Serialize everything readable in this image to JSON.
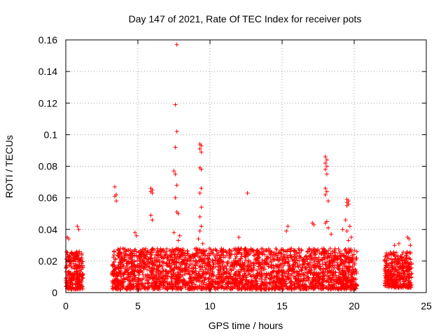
{
  "chart_data": {
    "type": "scatter",
    "title": "Day 147 of 2021, Rate Of TEC Index for receiver pots",
    "xlabel": "GPS time / hours",
    "ylabel": "ROTI / TECUs",
    "xlim": [
      0,
      25
    ],
    "ylim": [
      0,
      0.16
    ],
    "xticks": [
      0,
      5,
      10,
      15,
      20,
      25
    ],
    "yticks": [
      0,
      0.02,
      0.04,
      0.06,
      0.08,
      0.1,
      0.12,
      0.14,
      0.16
    ],
    "xtick_labels": [
      "0",
      "5",
      "10",
      "15",
      "20",
      "25"
    ],
    "ytick_labels": [
      "0",
      "0.02",
      "0.04",
      "0.06",
      "0.08",
      "0.1",
      "0.12",
      "0.14",
      "0.16"
    ],
    "grid": true,
    "marker": "+",
    "color": "#ff0000",
    "dense_segments": [
      {
        "x_range": [
          0.0,
          1.2
        ],
        "y_range": [
          0.002,
          0.026
        ],
        "density_per_hour": 220
      },
      {
        "x_range": [
          3.2,
          20.2
        ],
        "y_range": [
          0.002,
          0.028
        ],
        "density_per_hour": 170
      },
      {
        "x_range": [
          22.1,
          24.0
        ],
        "y_range": [
          0.003,
          0.026
        ],
        "density_per_hour": 200
      }
    ],
    "points": [
      {
        "x": 7.7,
        "y": 0.157
      },
      {
        "x": 7.6,
        "y": 0.119
      },
      {
        "x": 7.7,
        "y": 0.102
      },
      {
        "x": 7.6,
        "y": 0.092
      },
      {
        "x": 7.5,
        "y": 0.077
      },
      {
        "x": 7.6,
        "y": 0.075
      },
      {
        "x": 7.7,
        "y": 0.068
      },
      {
        "x": 7.6,
        "y": 0.06
      },
      {
        "x": 7.7,
        "y": 0.051
      },
      {
        "x": 7.8,
        "y": 0.05
      },
      {
        "x": 7.5,
        "y": 0.038
      },
      {
        "x": 7.9,
        "y": 0.036
      },
      {
        "x": 7.8,
        "y": 0.033
      },
      {
        "x": 9.3,
        "y": 0.094
      },
      {
        "x": 9.4,
        "y": 0.093
      },
      {
        "x": 9.3,
        "y": 0.091
      },
      {
        "x": 9.4,
        "y": 0.089
      },
      {
        "x": 9.3,
        "y": 0.079
      },
      {
        "x": 9.4,
        "y": 0.078
      },
      {
        "x": 9.4,
        "y": 0.066
      },
      {
        "x": 9.3,
        "y": 0.063
      },
      {
        "x": 9.4,
        "y": 0.054
      },
      {
        "x": 9.3,
        "y": 0.048
      },
      {
        "x": 9.4,
        "y": 0.042
      },
      {
        "x": 9.3,
        "y": 0.039
      },
      {
        "x": 9.2,
        "y": 0.034
      },
      {
        "x": 9.5,
        "y": 0.031
      },
      {
        "x": 3.4,
        "y": 0.067
      },
      {
        "x": 3.5,
        "y": 0.062
      },
      {
        "x": 3.4,
        "y": 0.061
      },
      {
        "x": 3.5,
        "y": 0.058
      },
      {
        "x": 5.9,
        "y": 0.066
      },
      {
        "x": 6.0,
        "y": 0.065
      },
      {
        "x": 5.9,
        "y": 0.064
      },
      {
        "x": 6.0,
        "y": 0.063
      },
      {
        "x": 5.9,
        "y": 0.049
      },
      {
        "x": 6.0,
        "y": 0.046
      },
      {
        "x": 4.8,
        "y": 0.038
      },
      {
        "x": 4.9,
        "y": 0.036
      },
      {
        "x": 0.1,
        "y": 0.035
      },
      {
        "x": 0.2,
        "y": 0.034
      },
      {
        "x": 0.8,
        "y": 0.042
      },
      {
        "x": 0.9,
        "y": 0.04
      },
      {
        "x": 12.6,
        "y": 0.063
      },
      {
        "x": 12.0,
        "y": 0.035
      },
      {
        "x": 15.4,
        "y": 0.042
      },
      {
        "x": 15.3,
        "y": 0.039
      },
      {
        "x": 17.1,
        "y": 0.044
      },
      {
        "x": 17.2,
        "y": 0.043
      },
      {
        "x": 18.0,
        "y": 0.086
      },
      {
        "x": 18.1,
        "y": 0.084
      },
      {
        "x": 18.0,
        "y": 0.082
      },
      {
        "x": 18.1,
        "y": 0.08
      },
      {
        "x": 18.0,
        "y": 0.078
      },
      {
        "x": 18.1,
        "y": 0.075
      },
      {
        "x": 18.0,
        "y": 0.066
      },
      {
        "x": 18.1,
        "y": 0.064
      },
      {
        "x": 18.0,
        "y": 0.062
      },
      {
        "x": 18.2,
        "y": 0.058
      },
      {
        "x": 18.1,
        "y": 0.045
      },
      {
        "x": 18.0,
        "y": 0.044
      },
      {
        "x": 18.2,
        "y": 0.041
      },
      {
        "x": 18.4,
        "y": 0.037
      },
      {
        "x": 19.5,
        "y": 0.059
      },
      {
        "x": 19.6,
        "y": 0.058
      },
      {
        "x": 19.5,
        "y": 0.057
      },
      {
        "x": 19.6,
        "y": 0.056
      },
      {
        "x": 19.5,
        "y": 0.055
      },
      {
        "x": 19.4,
        "y": 0.046
      },
      {
        "x": 19.7,
        "y": 0.042
      },
      {
        "x": 19.2,
        "y": 0.04
      },
      {
        "x": 19.5,
        "y": 0.039
      },
      {
        "x": 19.8,
        "y": 0.035
      },
      {
        "x": 19.6,
        "y": 0.033
      },
      {
        "x": 23.7,
        "y": 0.035
      },
      {
        "x": 23.8,
        "y": 0.034
      },
      {
        "x": 23.9,
        "y": 0.03
      },
      {
        "x": 22.8,
        "y": 0.03
      },
      {
        "x": 23.1,
        "y": 0.031
      }
    ]
  }
}
